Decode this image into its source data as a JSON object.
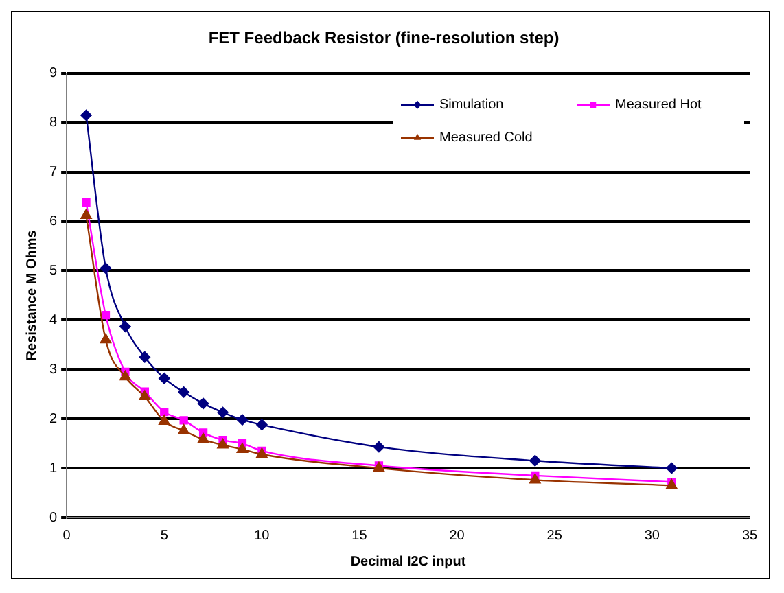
{
  "chart_data": {
    "type": "line",
    "title": "FET Feedback Resistor (fine-resolution step)",
    "xlabel": "Decimal I2C input",
    "ylabel": "Resistance M Ohms",
    "x": [
      1,
      2,
      3,
      4,
      5,
      6,
      7,
      8,
      9,
      10,
      16,
      24,
      31
    ],
    "series": [
      {
        "name": "Simulation",
        "color": "#000080",
        "marker": "diamond",
        "values": [
          8.15,
          5.05,
          3.87,
          3.25,
          2.82,
          2.54,
          2.31,
          2.13,
          1.98,
          1.88,
          1.43,
          1.15,
          1.0
        ]
      },
      {
        "name": "Measured Hot",
        "color": "#ff00ff",
        "marker": "square",
        "values": [
          6.38,
          4.1,
          2.95,
          2.55,
          2.14,
          1.97,
          1.72,
          1.57,
          1.5,
          1.35,
          1.05,
          0.85,
          0.72
        ]
      },
      {
        "name": "Measured Cold",
        "color": "#993300",
        "marker": "triangle",
        "values": [
          6.12,
          3.6,
          2.85,
          2.45,
          1.95,
          1.76,
          1.58,
          1.47,
          1.38,
          1.28,
          1.0,
          0.76,
          0.65
        ]
      }
    ],
    "xlim": [
      0,
      35
    ],
    "xticks": [
      0,
      5,
      10,
      15,
      20,
      25,
      30,
      35
    ],
    "ylim": [
      0,
      9
    ],
    "yticks": [
      0,
      1,
      2,
      3,
      4,
      5,
      6,
      7,
      8,
      9
    ],
    "grid": "y",
    "legend": "top right",
    "line_style": "solid"
  }
}
